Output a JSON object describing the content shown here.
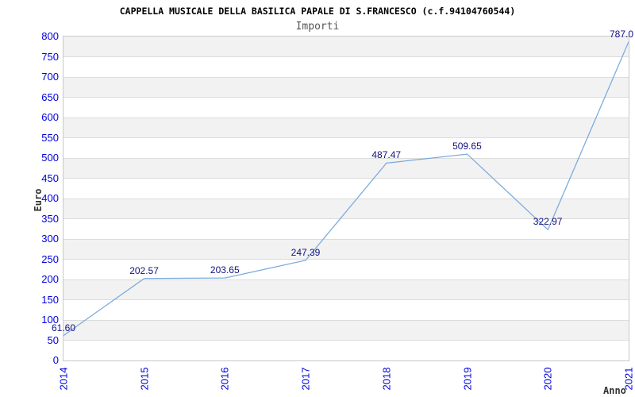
{
  "chart_data": {
    "type": "line",
    "title": "CAPPELLA MUSICALE DELLA BASILICA PAPALE DI S.FRANCESCO (c.f.94104760544)",
    "subtitle": "Importi",
    "xlabel": "Anno",
    "ylabel": "Euro",
    "categories": [
      "2014",
      "2015",
      "2016",
      "2017",
      "2018",
      "2019",
      "2020",
      "2021"
    ],
    "series": [
      {
        "name": "Importi",
        "values": [
          61.6,
          202.57,
          203.65,
          247.39,
          487.47,
          509.65,
          322.97,
          787.0
        ]
      }
    ],
    "point_labels": [
      "61.60",
      "202.57",
      "203.65",
      "247.39",
      "487.47",
      "509.65",
      "322.97",
      "787.0"
    ],
    "ylim": [
      0,
      800
    ],
    "y_tick_step": 50,
    "y_ticks": [
      0,
      50,
      100,
      150,
      200,
      250,
      300,
      350,
      400,
      450,
      500,
      550,
      600,
      650,
      700,
      750,
      800
    ],
    "grid": "horizontal-bands-alternating",
    "legend": "none",
    "colors": {
      "line": "#7AA9DC",
      "tick_label": "#0000DD",
      "data_label": "#111180",
      "band_gray": "#F2F2F2",
      "band_white": "#FFFFFF",
      "gridline": "#DCDCDC",
      "plot_border": "#C8C8C8",
      "title": "#000000",
      "subtitle": "#555555",
      "axis_title": "#333333"
    }
  }
}
